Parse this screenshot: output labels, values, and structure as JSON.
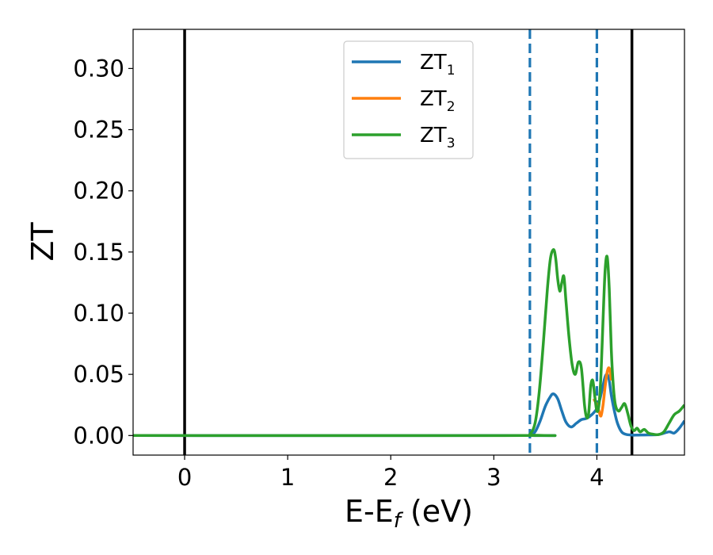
{
  "chart_data": {
    "type": "line",
    "title": "",
    "xlabel": {
      "main": "E-E",
      "sub": "f",
      "unit": " (eV)"
    },
    "ylabel": "ZT",
    "xlim": [
      -0.5,
      4.85
    ],
    "ylim": [
      -0.016,
      0.332
    ],
    "xticks": [
      0,
      1,
      2,
      3,
      4
    ],
    "yticks": [
      0.0,
      0.05,
      0.1,
      0.15,
      0.2,
      0.25,
      0.3
    ],
    "ytick_labels": [
      "0.00",
      "0.05",
      "0.10",
      "0.15",
      "0.20",
      "0.25",
      "0.30"
    ],
    "grid": false,
    "legend_position": "top-center",
    "vertical_lines": [
      {
        "x": 0.0,
        "style": "solid",
        "color": "#000000"
      },
      {
        "x": 4.34,
        "style": "solid",
        "color": "#000000"
      },
      {
        "x": 3.35,
        "style": "dashed",
        "color": "#1f77b4"
      },
      {
        "x": 4.0,
        "style": "dashed",
        "color": "#1f77b4"
      }
    ],
    "series": [
      {
        "name": "ZT",
        "sub": "1",
        "color": "#1f77b4",
        "x": [
          -0.5,
          3.3,
          3.35,
          3.4,
          3.45,
          3.5,
          3.55,
          3.58,
          3.62,
          3.66,
          3.7,
          3.75,
          3.8,
          3.85,
          3.9,
          3.95,
          4.0,
          4.03,
          4.06,
          4.08,
          4.1,
          4.12,
          4.14,
          4.17,
          4.2,
          4.24,
          4.28,
          4.32,
          4.36,
          4.4,
          4.5,
          4.6,
          4.7,
          4.75,
          4.8,
          4.85
        ],
        "y": [
          0,
          0,
          0.0002,
          0.003,
          0.012,
          0.024,
          0.032,
          0.034,
          0.03,
          0.02,
          0.011,
          0.007,
          0.01,
          0.013,
          0.014,
          0.017,
          0.022,
          0.03,
          0.041,
          0.048,
          0.05,
          0.045,
          0.033,
          0.02,
          0.01,
          0.003,
          0.001,
          0.0005,
          0.0003,
          0.0004,
          0.0005,
          0.0008,
          0.003,
          0.002,
          0.006,
          0.012
        ]
      },
      {
        "name": "ZT",
        "sub": "2",
        "color": "#ff7f0e",
        "x": [
          3.97,
          4.0,
          4.02,
          4.04,
          4.06,
          4.08,
          4.1,
          4.12,
          4.14
        ],
        "y": [
          0.03,
          0.025,
          0.02,
          0.016,
          0.025,
          0.04,
          0.052,
          0.055,
          0.045
        ]
      },
      {
        "name": "ZT",
        "sub": "3",
        "color": "#2ca02c",
        "x": [
          -0.5,
          3.3,
          3.35,
          3.4,
          3.44,
          3.48,
          3.52,
          3.55,
          3.58,
          3.6,
          3.62,
          3.64,
          3.66,
          3.68,
          3.7,
          3.73,
          3.76,
          3.79,
          3.82,
          3.85,
          3.88,
          3.9,
          3.92,
          3.94,
          3.96,
          3.98,
          4.0,
          4.02,
          4.04,
          4.06,
          4.08,
          4.1,
          4.12,
          4.14,
          4.16,
          4.18,
          4.21,
          4.24,
          4.27,
          4.3,
          4.33,
          4.36,
          4.39,
          4.42,
          4.46,
          4.5,
          4.55,
          4.6,
          4.65,
          4.7,
          4.75,
          4.8,
          4.85
        ],
        "y": [
          0,
          0,
          0.001,
          0.01,
          0.035,
          0.075,
          0.12,
          0.145,
          0.152,
          0.145,
          0.128,
          0.118,
          0.125,
          0.13,
          0.11,
          0.08,
          0.058,
          0.05,
          0.06,
          0.055,
          0.025,
          0.015,
          0.018,
          0.04,
          0.045,
          0.032,
          0.02,
          0.025,
          0.05,
          0.095,
          0.135,
          0.146,
          0.12,
          0.07,
          0.04,
          0.025,
          0.02,
          0.023,
          0.026,
          0.018,
          0.008,
          0.004,
          0.006,
          0.003,
          0.005,
          0.002,
          0.001,
          0.0008,
          0.003,
          0.01,
          0.017,
          0.02,
          0.025
        ]
      }
    ]
  }
}
